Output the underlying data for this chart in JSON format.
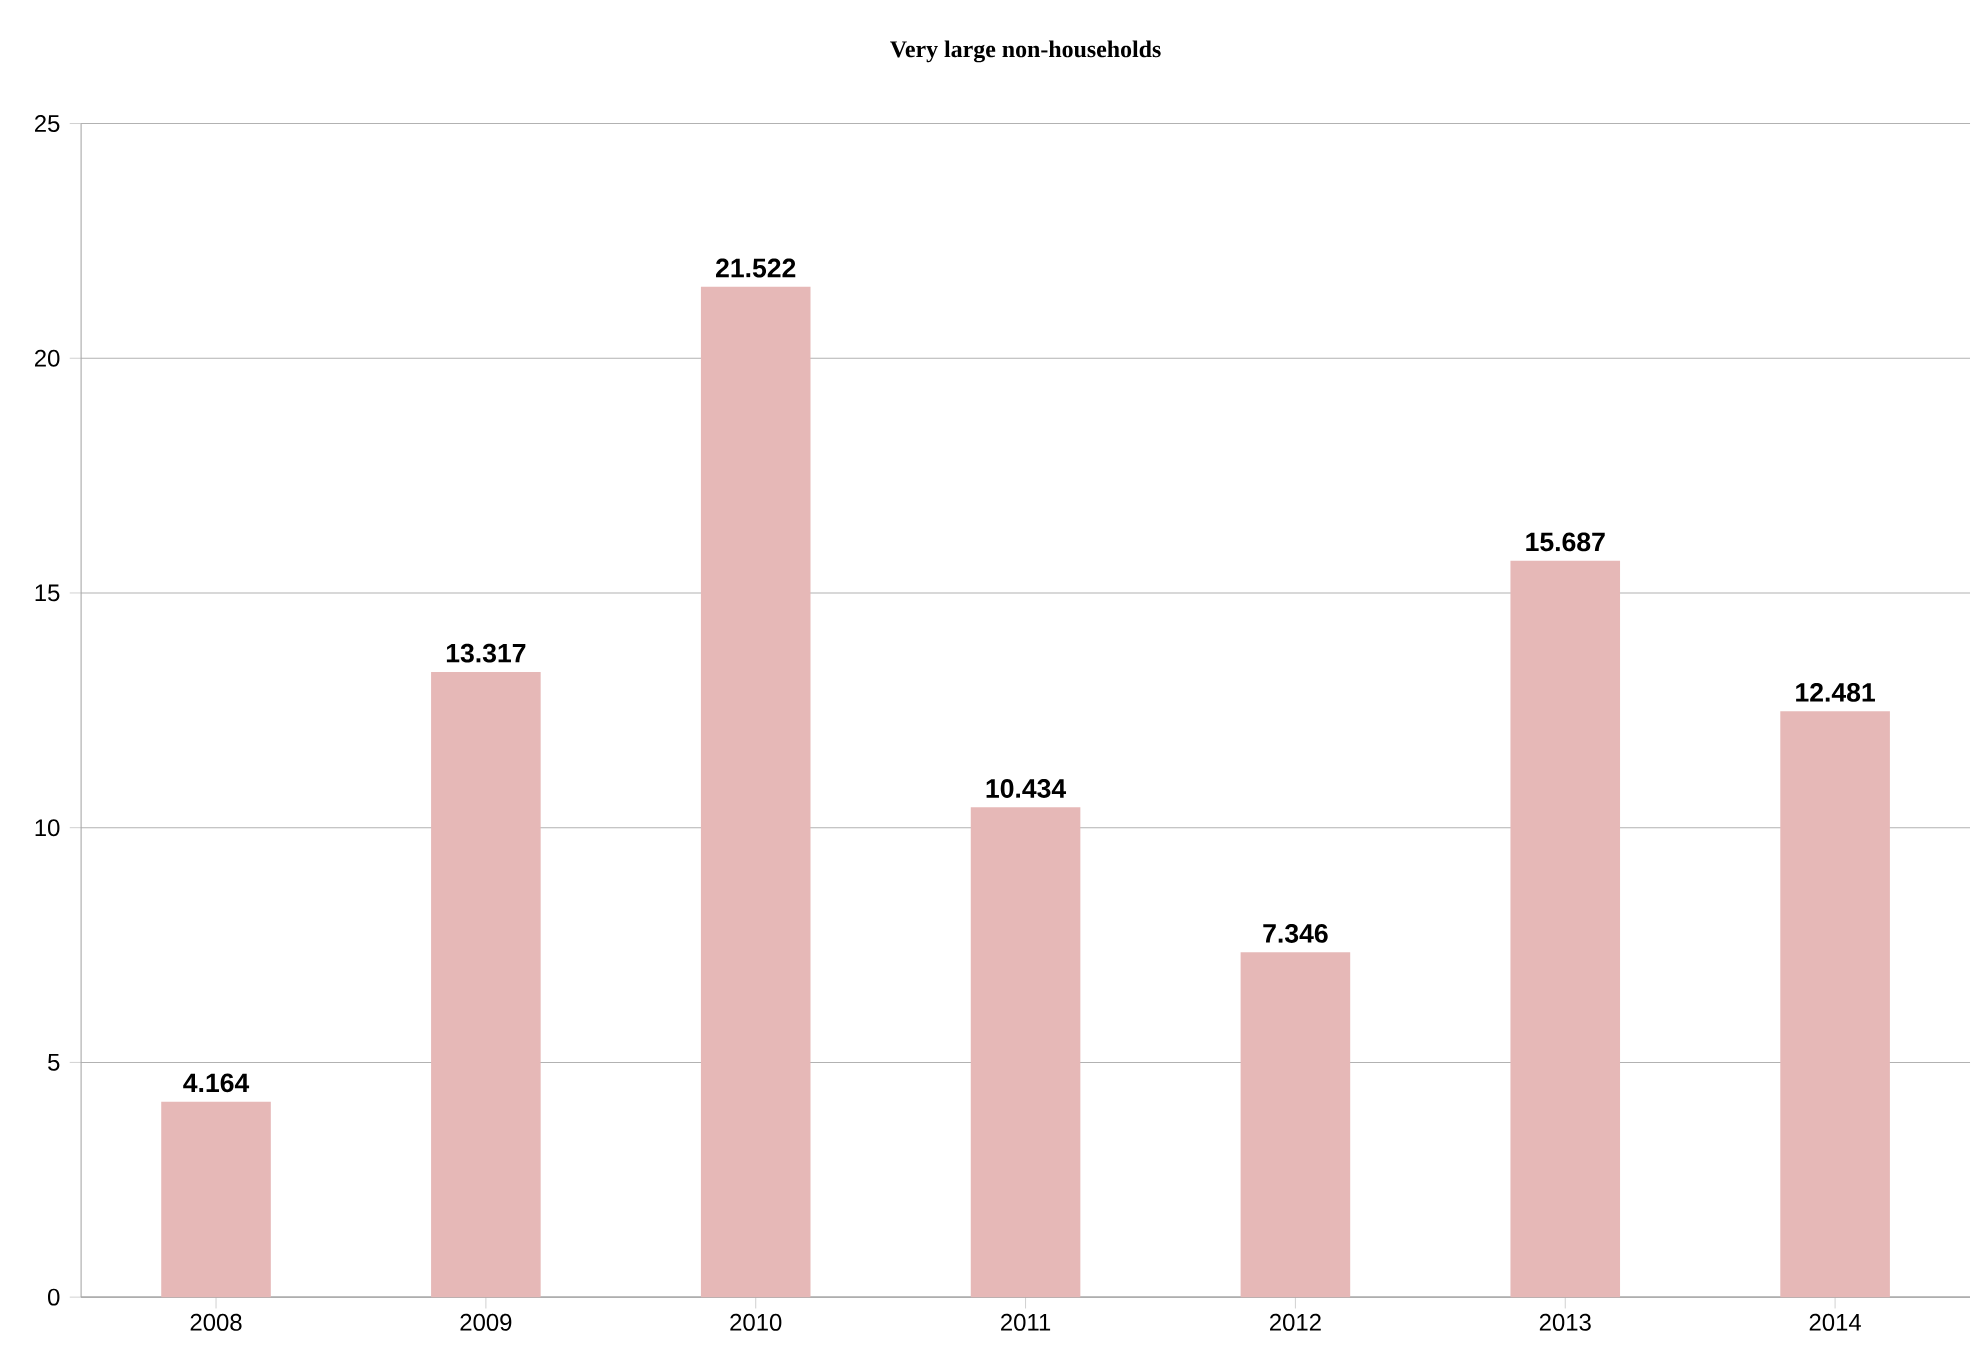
{
  "chart_data": {
    "type": "bar",
    "title": "Very large non-households",
    "categories": [
      "2008",
      "2009",
      "2010",
      "2011",
      "2012",
      "2013",
      "2014"
    ],
    "values": [
      4.164,
      13.317,
      21.522,
      10.434,
      7.346,
      15.687,
      12.481
    ],
    "color": "#e6b8b7",
    "ylim": [
      0,
      25
    ],
    "yticks": [
      0,
      5,
      10,
      15,
      20,
      25
    ],
    "grid": "y",
    "data_labels": true
  }
}
